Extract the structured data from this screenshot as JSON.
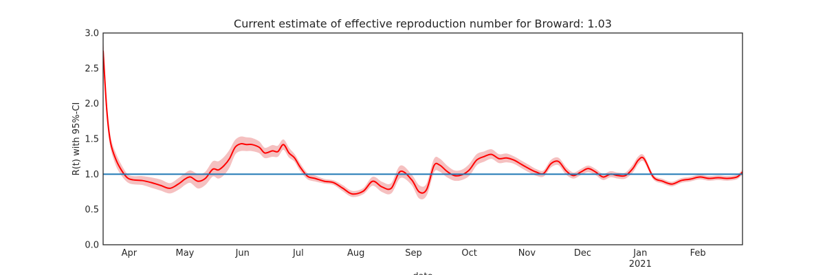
{
  "chart_data": {
    "type": "line",
    "title": "Current estimate of effective reproduction number for Broward: 1.03",
    "ylabel": "R(t) with 95%-CI",
    "xlabel": "date",
    "ylim": [
      0,
      3
    ],
    "y_ticks": [
      "0.0",
      "0.5",
      "1.0",
      "1.5",
      "2.0",
      "2.5",
      "3.0"
    ],
    "x_range": [
      "2020-03-18",
      "2021-02-25"
    ],
    "x_ticks": [
      {
        "date": "2020-04-01",
        "label": "Apr"
      },
      {
        "date": "2020-05-01",
        "label": "May"
      },
      {
        "date": "2020-06-01",
        "label": "Jun"
      },
      {
        "date": "2020-07-01",
        "label": "Jul"
      },
      {
        "date": "2020-08-01",
        "label": "Aug"
      },
      {
        "date": "2020-09-01",
        "label": "Sep"
      },
      {
        "date": "2020-10-01",
        "label": "Oct"
      },
      {
        "date": "2020-11-01",
        "label": "Nov"
      },
      {
        "date": "2020-12-01",
        "label": "Dec"
      },
      {
        "date": "2021-01-01",
        "label": "Jan",
        "sublabel": "2021"
      },
      {
        "date": "2021-02-01",
        "label": "Feb"
      }
    ],
    "reference_line": {
      "y": 1.0,
      "color": "#1f77b4"
    },
    "series_color": "#ff0000",
    "band_color": "#f4b6b6",
    "grid": false,
    "series": [
      {
        "x": [
          "2020-03-18",
          "2020-03-20",
          "2020-03-22",
          "2020-03-25",
          "2020-03-28",
          "2020-03-31",
          "2020-04-03",
          "2020-04-08",
          "2020-04-13",
          "2020-04-18",
          "2020-04-23",
          "2020-04-28",
          "2020-05-01",
          "2020-05-04",
          "2020-05-08",
          "2020-05-12",
          "2020-05-16",
          "2020-05-19",
          "2020-05-22",
          "2020-05-25",
          "2020-05-28",
          "2020-05-31",
          "2020-06-03",
          "2020-06-06",
          "2020-06-10",
          "2020-06-13",
          "2020-06-17",
          "2020-06-20",
          "2020-06-23",
          "2020-06-26",
          "2020-06-29",
          "2020-07-02",
          "2020-07-06",
          "2020-07-10",
          "2020-07-15",
          "2020-07-20",
          "2020-07-25",
          "2020-07-30",
          "2020-08-05",
          "2020-08-10",
          "2020-08-15",
          "2020-08-20",
          "2020-08-25",
          "2020-08-31",
          "2020-09-04",
          "2020-09-08",
          "2020-09-12",
          "2020-09-15",
          "2020-09-19",
          "2020-09-23",
          "2020-09-27",
          "2020-10-01",
          "2020-10-05",
          "2020-10-09",
          "2020-10-13",
          "2020-10-17",
          "2020-10-21",
          "2020-10-25",
          "2020-10-29",
          "2020-11-02",
          "2020-11-06",
          "2020-11-10",
          "2020-11-14",
          "2020-11-18",
          "2020-11-22",
          "2020-11-26",
          "2020-11-30",
          "2020-12-04",
          "2020-12-08",
          "2020-12-12",
          "2020-12-16",
          "2020-12-20",
          "2020-12-24",
          "2020-12-28",
          "2020-12-31",
          "2021-01-03",
          "2021-01-08",
          "2021-01-13",
          "2021-01-18",
          "2021-01-23",
          "2021-01-28",
          "2021-02-02",
          "2021-02-07",
          "2021-02-12",
          "2021-02-17",
          "2021-02-22",
          "2021-02-25"
        ],
        "y": [
          2.75,
          1.9,
          1.45,
          1.2,
          1.05,
          0.95,
          0.92,
          0.91,
          0.88,
          0.84,
          0.8,
          0.87,
          0.93,
          0.96,
          0.9,
          0.94,
          1.07,
          1.06,
          1.12,
          1.22,
          1.38,
          1.43,
          1.42,
          1.42,
          1.38,
          1.3,
          1.33,
          1.32,
          1.42,
          1.3,
          1.23,
          1.1,
          0.97,
          0.94,
          0.9,
          0.88,
          0.8,
          0.72,
          0.76,
          0.9,
          0.82,
          0.8,
          1.04,
          0.92,
          0.75,
          0.78,
          1.12,
          1.13,
          1.04,
          0.98,
          0.99,
          1.06,
          1.2,
          1.25,
          1.28,
          1.22,
          1.23,
          1.2,
          1.14,
          1.08,
          1.03,
          1.01,
          1.15,
          1.18,
          1.05,
          0.98,
          1.03,
          1.08,
          1.03,
          0.96,
          1.0,
          0.98,
          0.98,
          1.08,
          1.2,
          1.22,
          0.96,
          0.9,
          0.86,
          0.91,
          0.93,
          0.96,
          0.94,
          0.95,
          0.94,
          0.96,
          1.03
        ],
        "lower": [
          2.6,
          1.8,
          1.38,
          1.12,
          0.98,
          0.89,
          0.86,
          0.85,
          0.81,
          0.77,
          0.73,
          0.79,
          0.85,
          0.88,
          0.8,
          0.85,
          0.97,
          0.94,
          0.99,
          1.1,
          1.28,
          1.33,
          1.33,
          1.33,
          1.3,
          1.23,
          1.25,
          1.25,
          1.35,
          1.24,
          1.18,
          1.05,
          0.93,
          0.9,
          0.87,
          0.85,
          0.76,
          0.68,
          0.72,
          0.84,
          0.75,
          0.73,
          0.95,
          0.85,
          0.66,
          0.7,
          1.03,
          1.04,
          0.96,
          0.91,
          0.92,
          0.98,
          1.13,
          1.18,
          1.22,
          1.16,
          1.17,
          1.15,
          1.09,
          1.03,
          0.98,
          0.97,
          1.1,
          1.13,
          1.0,
          0.94,
          0.99,
          1.03,
          0.99,
          0.92,
          0.96,
          0.94,
          0.94,
          1.03,
          1.15,
          1.18,
          0.93,
          0.87,
          0.83,
          0.88,
          0.9,
          0.93,
          0.91,
          0.92,
          0.91,
          0.93,
          1.0
        ],
        "upper": [
          2.9,
          2.0,
          1.52,
          1.28,
          1.12,
          1.0,
          0.97,
          0.97,
          0.95,
          0.92,
          0.87,
          0.95,
          1.01,
          1.05,
          1.0,
          1.03,
          1.18,
          1.18,
          1.24,
          1.34,
          1.48,
          1.53,
          1.52,
          1.51,
          1.46,
          1.37,
          1.41,
          1.4,
          1.49,
          1.37,
          1.28,
          1.15,
          1.01,
          0.98,
          0.93,
          0.91,
          0.84,
          0.76,
          0.8,
          0.96,
          0.89,
          0.87,
          1.12,
          0.99,
          0.84,
          0.86,
          1.21,
          1.22,
          1.12,
          1.05,
          1.06,
          1.14,
          1.28,
          1.32,
          1.35,
          1.28,
          1.29,
          1.25,
          1.19,
          1.13,
          1.07,
          1.05,
          1.2,
          1.23,
          1.1,
          1.02,
          1.07,
          1.12,
          1.07,
          1.0,
          1.04,
          1.02,
          1.02,
          1.13,
          1.25,
          1.26,
          0.99,
          0.93,
          0.89,
          0.94,
          0.96,
          0.99,
          0.97,
          0.98,
          0.97,
          0.99,
          1.06
        ]
      }
    ]
  }
}
